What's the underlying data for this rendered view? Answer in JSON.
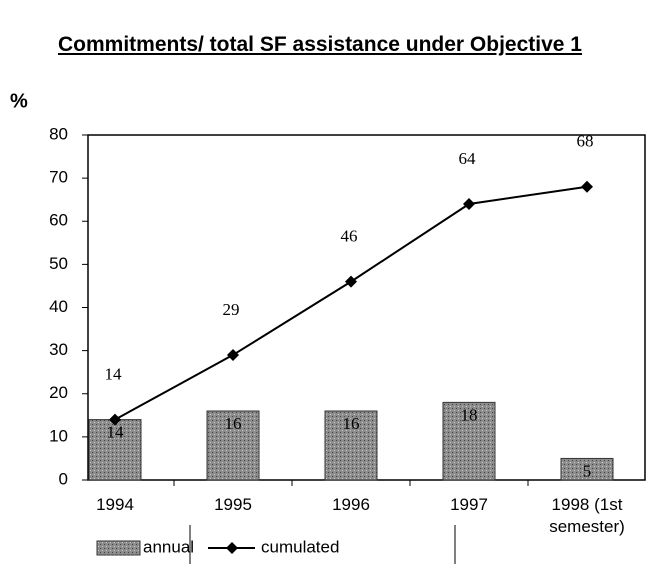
{
  "chart_data": {
    "type": "combo",
    "title": "Commitments/ total SF assistance under Objective 1",
    "y_label": "%",
    "categories": [
      "1994",
      "1995",
      "1996",
      "1997",
      "1998 (1st semester)"
    ],
    "series": [
      {
        "name": "annual",
        "type": "bar",
        "color": "#9a9a9a",
        "values": [
          14,
          16,
          16,
          18,
          5
        ]
      },
      {
        "name": "cumulated",
        "type": "line",
        "color": "#000000",
        "values": [
          14,
          29,
          46,
          64,
          68
        ]
      }
    ],
    "ylim": [
      0,
      80
    ],
    "yticks": [
      0,
      10,
      20,
      30,
      40,
      50,
      60,
      70,
      80
    ]
  }
}
